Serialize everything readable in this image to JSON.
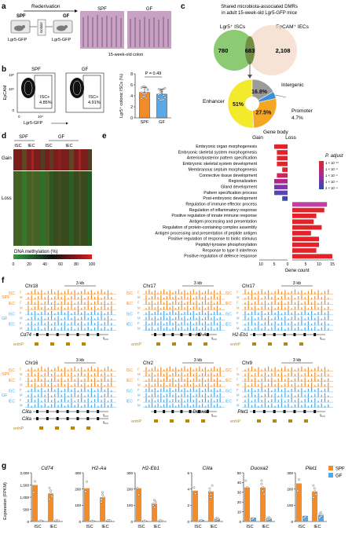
{
  "panels": {
    "a": {
      "letter": "a",
      "rederivation": "Rederivation",
      "spf": "SPF",
      "gf": "GF",
      "isolator": "Isolator",
      "mouse_left": "Lgr5-GFP",
      "mouse_right": "Lgr5-GFP",
      "img_spf": "SPF",
      "img_gf": "GF",
      "caption": "15-week-old colon"
    },
    "b": {
      "letter": "b",
      "spf": "SPF",
      "gf": "GF",
      "gate_spf": "ISC+",
      "pct_spf": "4.85%",
      "gate_gf": "ISC+",
      "pct_gf": "4.91%",
      "y_axis": "EpCAM",
      "x_axis": "Lgr5-GFP",
      "ticks_y": [
        "10⁵",
        "10⁴",
        "0"
      ],
      "ticks_x": [
        "0",
        "10⁴"
      ],
      "chart_data": {
        "type": "bar",
        "categories": [
          "SPF",
          "GF"
        ],
        "values": [
          4.6,
          4.3
        ],
        "ylabel": "Lgr5⁺ colonic ISCs (%)",
        "ylim": [
          0,
          8
        ],
        "yticks": [
          "0",
          "2",
          "4",
          "6",
          "8"
        ],
        "pvalue": "P = 0.49",
        "colors": [
          "#f28c28",
          "#5aa9e6"
        ]
      }
    },
    "c": {
      "letter": "c",
      "title1": "Shared microbiota-associated DMRs",
      "title2": "in adult 15-week-old Lgr5-GFP mice",
      "venn_left": "Lgr5⁺ ISCs",
      "venn_right": "EpCAM⁺ IECs",
      "n_left": "780",
      "n_shared": "683",
      "n_right": "2,108",
      "pie": {
        "type": "pie",
        "slices": [
          {
            "label": "Enhancer",
            "value": 51,
            "text": "51%",
            "color": "#f2ea2b"
          },
          {
            "label": "Gene body",
            "value": 27.5,
            "text": "27.5%",
            "color": "#f5a623"
          },
          {
            "label": "Promoter",
            "value": 4.7,
            "text": "4.7%",
            "color": "#3b8fd9"
          },
          {
            "label": "Intergenic",
            "value": 16.8,
            "text": "16.8%",
            "color": "#9b9b9b"
          }
        ],
        "label_enhancer": "Enhancer",
        "label_intergenic": "Intergenic",
        "label_promoter": "Promoter",
        "label_genebody": "Gene body"
      }
    },
    "d": {
      "letter": "d",
      "spf": "SPF",
      "gf": "GF",
      "isc1": "ISC",
      "iec1": "IEC",
      "isc2": "ISC",
      "iec2": "IEC",
      "gain": "Gain",
      "loss": "Loss",
      "scale_title": "DNA methylation (%)",
      "scale_ticks": [
        "0",
        "20",
        "40",
        "60",
        "80",
        "100"
      ]
    },
    "e": {
      "letter": "e",
      "gain": "Gain",
      "loss": "Loss",
      "legend_title": "P. adjust",
      "legend_ticks": [
        "1 × 10⁻¹⁰",
        "1 × 10⁻⁸",
        "1 × 10⁻⁶",
        "1 × 10⁻⁴",
        "2 × 10⁻⁴"
      ],
      "chart_data": {
        "type": "bar",
        "xlabel": "Gene count",
        "xticks_gain": [
          "10",
          "5",
          "0"
        ],
        "xticks_loss": [
          "5",
          "10",
          "15"
        ],
        "terms": [
          {
            "name": "Embryonic organ morphogenesis",
            "side": "gain",
            "count": 5,
            "color": "#e3232a"
          },
          {
            "name": "Embryonic skeletal system morphogenesis",
            "side": "gain",
            "count": 4,
            "color": "#e3232a"
          },
          {
            "name": "Anterior/posterior pattern specification",
            "side": "gain",
            "count": 4,
            "color": "#e3232a"
          },
          {
            "name": "Embryonic skeletal system development",
            "side": "gain",
            "count": 4,
            "color": "#e3232a"
          },
          {
            "name": "Membranous septum morphogenesis",
            "side": "gain",
            "count": 2,
            "color": "#e3232a"
          },
          {
            "name": "Connective tissue development",
            "side": "gain",
            "count": 4,
            "color": "#d0245f"
          },
          {
            "name": "Regionalization",
            "side": "gain",
            "count": 5,
            "color": "#b0268a"
          },
          {
            "name": "Gland development",
            "side": "gain",
            "count": 5,
            "color": "#7f34b0"
          },
          {
            "name": "Pattern specification process",
            "side": "gain",
            "count": 5,
            "color": "#5a43b8"
          },
          {
            "name": "Post-embryonic development",
            "side": "gain",
            "count": 2,
            "color": "#3c4aa8"
          },
          {
            "name": "Regulation of immune effector process",
            "side": "loss",
            "count": 13,
            "color": "#c040a0"
          },
          {
            "name": "Regulation of inflammatory response",
            "side": "loss",
            "count": 12,
            "color": "#e3232a"
          },
          {
            "name": "Positive regulation of innate immune response",
            "side": "loss",
            "count": 9,
            "color": "#e3232a"
          },
          {
            "name": "Antigen processing and presentation",
            "side": "loss",
            "count": 8,
            "color": "#e3232a"
          },
          {
            "name": "Regulation of protein-containing complex assembly",
            "side": "loss",
            "count": 11,
            "color": "#e3232a"
          },
          {
            "name": "Antigen processing and presentation of peptide antigen",
            "side": "loss",
            "count": 7,
            "color": "#e3232a"
          },
          {
            "name": "Positive regulation of response to biotic stimulus",
            "side": "loss",
            "count": 10,
            "color": "#e3232a"
          },
          {
            "name": "Peptidyl-tyrosine phosphorylation",
            "side": "loss",
            "count": 10,
            "color": "#e3232a"
          },
          {
            "name": "Response to type II interferon",
            "side": "loss",
            "count": 9,
            "color": "#e3232a"
          },
          {
            "name": "Positive regulation of defence response",
            "side": "loss",
            "count": 15,
            "color": "#e3232a"
          }
        ]
      }
    },
    "f": {
      "letter": "f",
      "spf": "SPF",
      "gf": "GF",
      "isc": "ISC",
      "iec": "IEC",
      "f": "F",
      "m": "M",
      "enhp": "enhP",
      "loci": [
        {
          "chr": "Chr18",
          "scale": "3 kb",
          "genes": [
            "Cd74"
          ]
        },
        {
          "chr": "Chr17",
          "scale": "3 kb",
          "genes": [
            "H2-Aa"
          ]
        },
        {
          "chr": "Chr17",
          "scale": "3 kb",
          "genes": [
            "H2-Eb1"
          ]
        },
        {
          "chr": "Chr16",
          "scale": "3 kb",
          "genes": [
            "Ciita",
            "Ciita"
          ]
        },
        {
          "chr": "Chr2",
          "scale": "3 kb",
          "genes": [
            "Duoxa2"
          ]
        },
        {
          "chr": "Chr9",
          "scale": "3 kb",
          "genes": [
            "Plet1"
          ]
        }
      ]
    },
    "g": {
      "letter": "g",
      "ylabel": "Expression (FPKM)",
      "legend_spf": "SPF",
      "legend_gf": "GF",
      "chart_data": {
        "type": "bar",
        "panels": [
          {
            "gene": "Cd74",
            "ymax": 2000,
            "yticks": [
              "0",
              "500",
              "1,000",
              "1,500",
              "2,000"
            ],
            "groups": [
              "ISC",
              "IEC"
            ],
            "spf": [
              1500,
              1150
            ],
            "gf": [
              40,
              30
            ]
          },
          {
            "gene": "H2-Aa",
            "ymax": 300,
            "yticks": [
              "0",
              "100",
              "200",
              "300"
            ],
            "groups": [
              "ISC",
              "IEC"
            ],
            "spf": [
              205,
              150
            ],
            "gf": [
              5,
              5
            ]
          },
          {
            "gene": "H2-Eb1",
            "ymax": 300,
            "yticks": [
              "0",
              "100",
              "200",
              "300"
            ],
            "groups": [
              "ISC",
              "IEC"
            ],
            "spf": [
              205,
              110
            ],
            "gf": [
              5,
              4
            ]
          },
          {
            "gene": "Ciita",
            "ymax": 6,
            "yticks": [
              "0",
              "2",
              "4",
              "6"
            ],
            "groups": [
              "ISC",
              "IEC"
            ],
            "spf": [
              3.8,
              3.7
            ],
            "gf": [
              0.2,
              0.3
            ]
          },
          {
            "gene": "Duoxa2",
            "ymax": 50,
            "yticks": [
              "0",
              "10",
              "20",
              "30",
              "40",
              "50"
            ],
            "groups": [
              "ISC",
              "IEC"
            ],
            "spf": [
              35,
              35
            ],
            "gf": [
              4,
              3
            ]
          },
          {
            "gene": "Plet1",
            "ymax": 300,
            "yticks": [
              "0",
              "100",
              "200",
              "300"
            ],
            "groups": [
              "ISC",
              "IEC"
            ],
            "spf": [
              235,
              185
            ],
            "gf": [
              35,
              40
            ]
          }
        ]
      }
    }
  },
  "colors": {
    "spf": "#f28c28",
    "gf": "#4fa9e8",
    "gene_box": "#b8860b"
  }
}
